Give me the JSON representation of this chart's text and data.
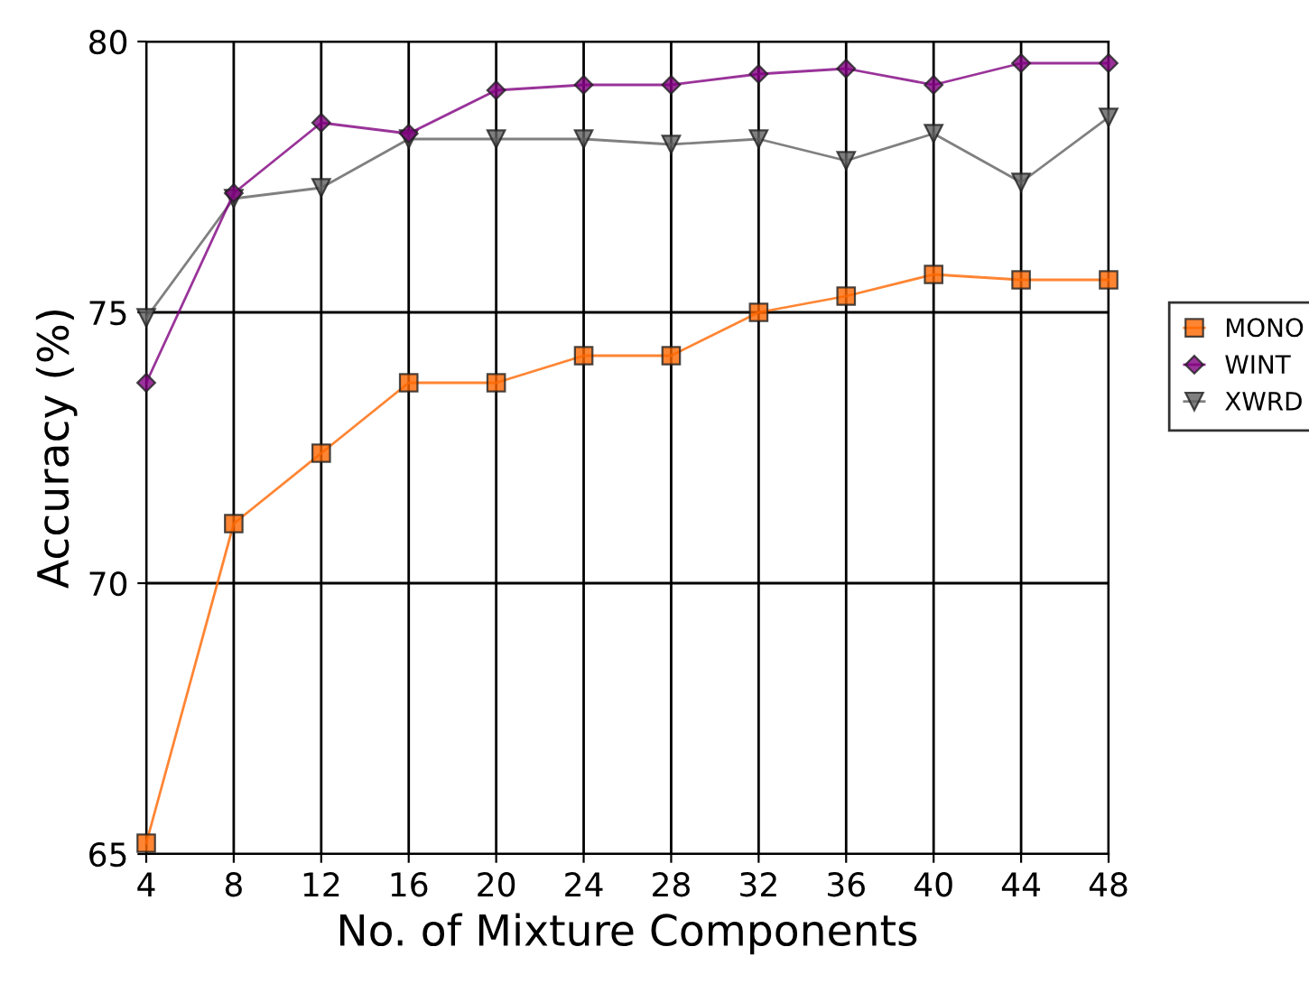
{
  "chart_data": {
    "type": "line",
    "xlabel": "No. of Mixture Components",
    "ylabel": "Accuracy (%)",
    "x": [
      4,
      8,
      12,
      16,
      20,
      24,
      28,
      32,
      36,
      40,
      44,
      48
    ],
    "xlim": [
      4,
      48
    ],
    "xticks": [
      4,
      8,
      12,
      16,
      20,
      24,
      28,
      32,
      36,
      40,
      44,
      48
    ],
    "ylim": [
      65,
      80
    ],
    "yticks": [
      65,
      70,
      75,
      80
    ],
    "grid": true,
    "legend": "right",
    "series": [
      {
        "name": "MONO",
        "color": "#ff6600",
        "marker": "square",
        "values": [
          65.2,
          71.1,
          72.4,
          73.7,
          73.7,
          74.2,
          74.2,
          75.0,
          75.3,
          75.7,
          75.6,
          75.6
        ]
      },
      {
        "name": "WINT",
        "color": "#800080",
        "marker": "diamond",
        "values": [
          73.7,
          77.2,
          78.5,
          78.3,
          79.1,
          79.2,
          79.2,
          79.4,
          79.5,
          79.2,
          79.6,
          79.6
        ]
      },
      {
        "name": "XWRD",
        "color": "#606060",
        "marker": "triangle",
        "values": [
          74.9,
          77.1,
          77.3,
          78.2,
          78.2,
          78.2,
          78.1,
          78.2,
          77.8,
          78.3,
          77.4,
          78.6
        ]
      }
    ]
  }
}
